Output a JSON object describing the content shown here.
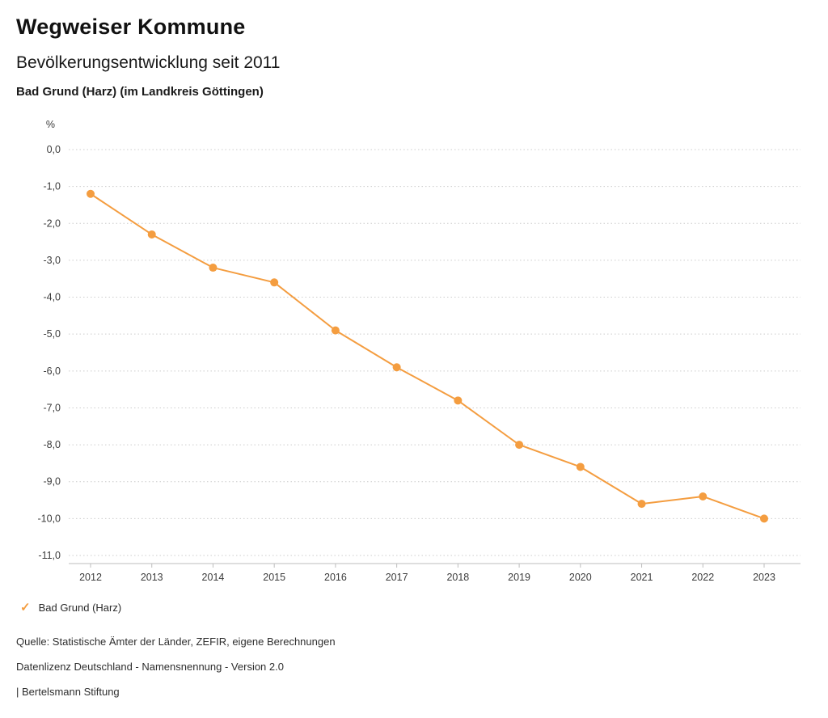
{
  "header": {
    "title": "Wegweiser Kommune",
    "subtitle": "Bevölkerungsentwicklung seit 2011",
    "location": "Bad Grund (Harz) (im Landkreis Göttingen)"
  },
  "chart_data": {
    "type": "line",
    "title": "Bevölkerungsentwicklung seit 2011",
    "unit_label": "%",
    "categories": [
      "2012",
      "2013",
      "2014",
      "2015",
      "2016",
      "2017",
      "2018",
      "2019",
      "2020",
      "2021",
      "2022",
      "2023"
    ],
    "series": [
      {
        "name": "Bad Grund (Harz)",
        "color": "#f49d40",
        "values": [
          -1.2,
          -2.3,
          -3.2,
          -3.6,
          -4.9,
          -5.9,
          -6.8,
          -8.0,
          -8.6,
          -9.6,
          -9.4,
          -10.0
        ]
      }
    ],
    "ylim": [
      -11,
      0
    ],
    "ytick_values": [
      0,
      -1,
      -2,
      -3,
      -4,
      -5,
      -6,
      -7,
      -8,
      -9,
      -10,
      -11
    ],
    "ytick_labels": [
      "0,0",
      "-1,0",
      "-2,0",
      "-3,0",
      "-4,0",
      "-5,0",
      "-6,0",
      "-7,0",
      "-8,0",
      "-9,0",
      "-10,0",
      "-11,0"
    ],
    "xlabel": "",
    "ylabel": "%",
    "grid": "horizontal-dotted",
    "legend_position": "bottom-left"
  },
  "legend": {
    "check_color": "#f49d40",
    "label": "Bad Grund (Harz)"
  },
  "footer": {
    "source": "Quelle: Statistische Ämter der Länder, ZEFIR, eigene Berechnungen",
    "license": "Datenlizenz Deutschland - Namensnennung - Version 2.0",
    "publisher": "| Bertelsmann Stiftung"
  }
}
